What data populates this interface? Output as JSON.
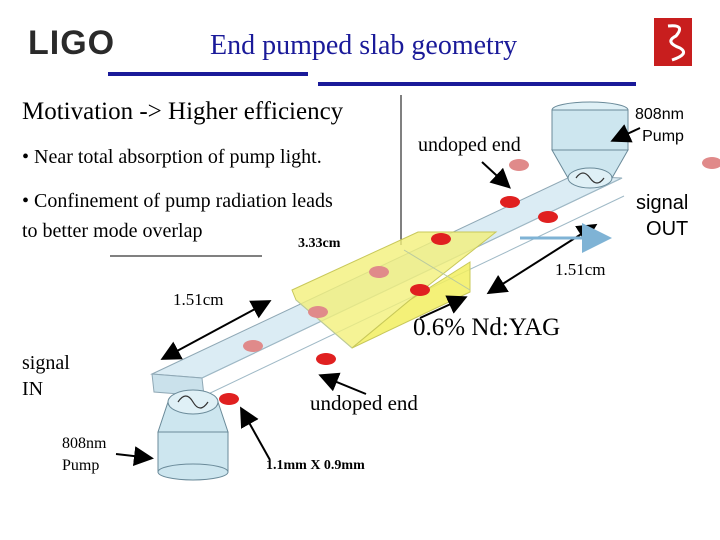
{
  "header": {
    "logo_text": "LIGO",
    "title": "End pumped slab geometry"
  },
  "motivation": {
    "heading": "Motivation -> Higher efficiency",
    "bullet_1": "• Near total absorption of pump  light.",
    "bullet_2_line_1": "• Confinement of pump radiation leads",
    "bullet_2_line_2": "to better mode overlap"
  },
  "diagram": {
    "undoped_end_top": "undoped end",
    "pump_top": {
      "line_1": "808nm",
      "line_2": "Pump"
    },
    "signal_out": {
      "line_1": "signal",
      "line_2": "OUT"
    },
    "length_label": "3.33cm",
    "width_label_right": "1.51cm",
    "width_label_left": "1.51cm",
    "gain_medium_label": "0.6% Nd:YAG",
    "signal_in": {
      "line_1": "signal",
      "line_2": "IN"
    },
    "undoped_end_bottom": "undoped end",
    "pump_bottom": {
      "line_1": "808nm",
      "line_2": "Pump"
    },
    "cross_section_label": "1.1mm X 0.9mm"
  },
  "colors": {
    "title": "#1a1a99",
    "rule": "#1a1a99",
    "slab_fill": "#cfe6f0",
    "doped_fill": "#f2f07a",
    "spot_red": "#e02020",
    "spot_pink": "#e08a8a",
    "pump_fill": "#cde6ef"
  }
}
